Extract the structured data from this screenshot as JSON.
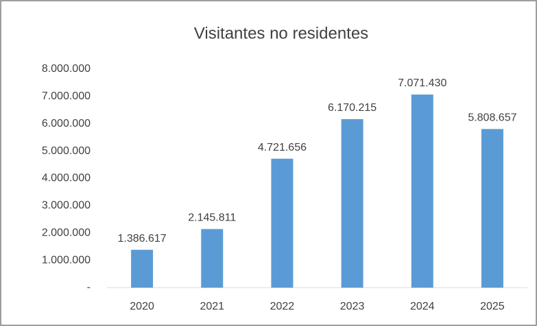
{
  "chart_data": {
    "type": "bar",
    "title": "Visitantes no residentes",
    "categories": [
      "2020",
      "2021",
      "2022",
      "2023",
      "2024",
      "2025"
    ],
    "values": [
      1386617,
      2145811,
      4721656,
      6170215,
      7071430,
      5808657
    ],
    "value_labels": [
      "1.386.617",
      "2.145.811",
      "4.721.656",
      "6.170.215",
      "7.071.430",
      "5.808.657"
    ],
    "color": "#5b9bd5",
    "ylim": [
      0,
      8000000
    ],
    "yticks": [
      {
        "value": 0,
        "label": "-"
      },
      {
        "value": 1000000,
        "label": "1.000.000"
      },
      {
        "value": 2000000,
        "label": "2.000.000"
      },
      {
        "value": 3000000,
        "label": "3.000.000"
      },
      {
        "value": 4000000,
        "label": "4.000.000"
      },
      {
        "value": 5000000,
        "label": "5.000.000"
      },
      {
        "value": 6000000,
        "label": "6.000.000"
      },
      {
        "value": 7000000,
        "label": "7.000.000"
      },
      {
        "value": 8000000,
        "label": "8.000.000"
      }
    ],
    "grid": false
  }
}
